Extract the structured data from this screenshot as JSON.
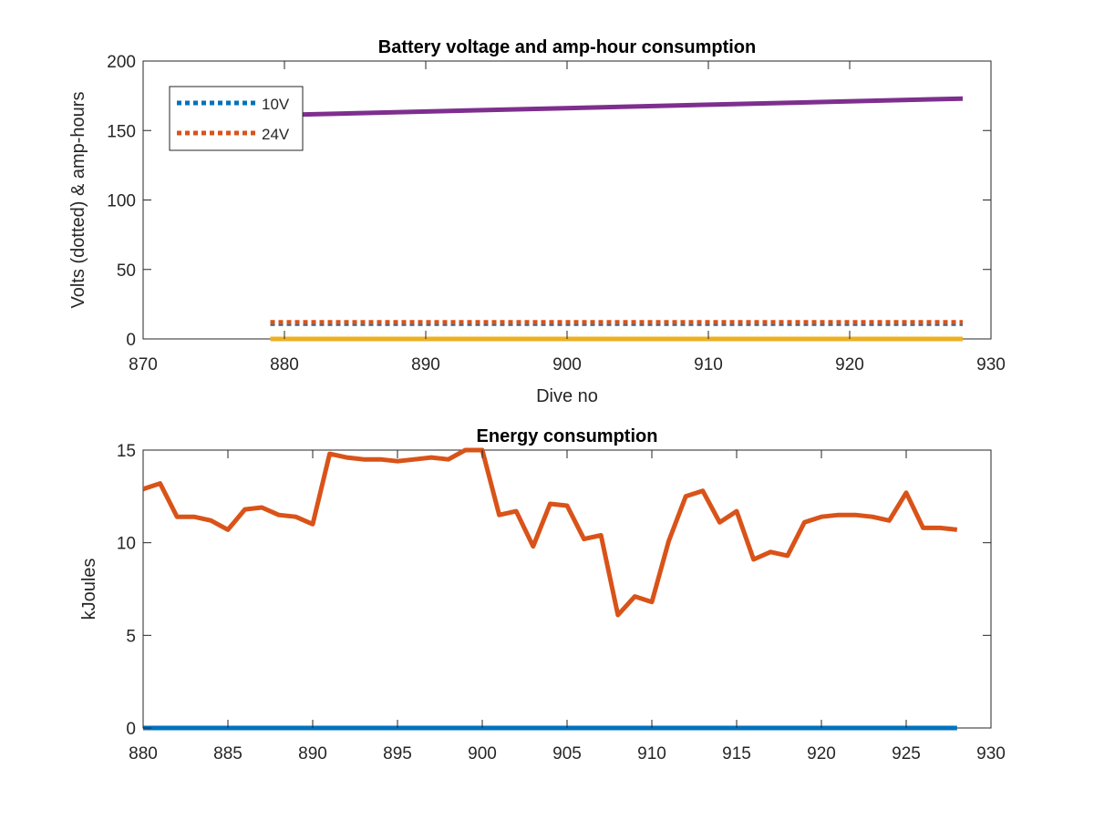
{
  "chart_data": [
    {
      "type": "line",
      "title": "Battery voltage and amp-hour consumption",
      "xlabel": "Dive no",
      "ylabel": "Volts (dotted) & amp-hours",
      "xlim": [
        870,
        930
      ],
      "ylim": [
        0,
        200
      ],
      "xticks": [
        870,
        880,
        890,
        900,
        910,
        920,
        930
      ],
      "yticks": [
        0,
        50,
        100,
        150,
        200
      ],
      "grid": false,
      "legend": {
        "placement": "top-left",
        "entries": [
          "10V",
          "24V"
        ]
      },
      "series": [
        {
          "name": "10V",
          "style": "dotted",
          "color": "#0072BD",
          "x": [
            879,
            928
          ],
          "y": [
            11,
            11
          ]
        },
        {
          "name": "24V",
          "style": "dotted",
          "color": "#D95319",
          "x": [
            879,
            884,
            889,
            894,
            899,
            904,
            909,
            914,
            919,
            924,
            928
          ],
          "y": [
            12,
            12,
            12,
            12,
            12,
            12,
            12,
            12,
            12,
            12,
            12
          ]
        },
        {
          "style": "solid",
          "color": "#EDB120",
          "x": [
            879,
            928
          ],
          "y": [
            0,
            0
          ]
        },
        {
          "style": "solid",
          "color": "#7E2F8E",
          "x": [
            879,
            928
          ],
          "y": [
            161,
            173
          ]
        }
      ]
    },
    {
      "type": "line",
      "title": "Energy consumption",
      "xlabel": "",
      "ylabel": "kJoules",
      "xlim": [
        880,
        930
      ],
      "ylim": [
        0,
        15
      ],
      "xticks": [
        880,
        885,
        890,
        895,
        900,
        905,
        910,
        915,
        920,
        925,
        930
      ],
      "yticks": [
        0,
        5,
        10,
        15
      ],
      "grid": false,
      "series": [
        {
          "style": "solid",
          "color": "#D95319",
          "x": [
            880,
            881,
            882,
            883,
            884,
            885,
            886,
            887,
            888,
            889,
            890,
            891,
            892,
            893,
            894,
            895,
            896,
            897,
            898,
            899,
            900,
            901,
            902,
            903,
            904,
            905,
            906,
            907,
            908,
            909,
            910,
            911,
            912,
            913,
            914,
            915,
            916,
            917,
            918,
            919,
            920,
            921,
            922,
            923,
            924,
            925,
            926,
            927,
            928
          ],
          "y": [
            12.9,
            13.2,
            11.4,
            11.4,
            11.2,
            10.7,
            11.8,
            11.9,
            11.5,
            11.4,
            11.0,
            14.8,
            14.6,
            14.5,
            14.5,
            14.4,
            14.5,
            14.6,
            14.5,
            15.0,
            15.0,
            11.5,
            11.7,
            9.8,
            12.1,
            12.0,
            10.2,
            10.4,
            6.1,
            7.1,
            6.8,
            10.1,
            12.5,
            12.8,
            11.1,
            11.7,
            9.1,
            9.5,
            9.3,
            11.1,
            11.4,
            11.5,
            11.5,
            11.4,
            11.2,
            12.7,
            10.8,
            10.8,
            10.7
          ]
        },
        {
          "style": "solid",
          "color": "#0072BD",
          "x": [
            880,
            928
          ],
          "y": [
            0,
            0
          ]
        }
      ]
    }
  ]
}
